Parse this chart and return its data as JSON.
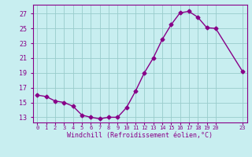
{
  "x": [
    0,
    1,
    2,
    3,
    4,
    5,
    6,
    7,
    8,
    9,
    10,
    11,
    12,
    13,
    14,
    15,
    16,
    17,
    18,
    19,
    20,
    23
  ],
  "y": [
    16.0,
    15.8,
    15.2,
    15.0,
    14.5,
    13.3,
    13.0,
    12.8,
    13.0,
    13.0,
    14.3,
    16.5,
    19.0,
    21.0,
    23.5,
    25.5,
    27.1,
    27.3,
    26.5,
    25.1,
    25.0,
    19.2
  ],
  "line_color": "#880088",
  "marker": "D",
  "marker_size": 2.5,
  "bg_color": "#c8eef0",
  "grid_color": "#99cccc",
  "xlabel": "Windchill (Refroidissement éolien,°C)",
  "xlabel_color": "#880088",
  "tick_color": "#880088",
  "ylabel_ticks": [
    13,
    15,
    17,
    19,
    21,
    23,
    25,
    27
  ],
  "xlim": [
    -0.5,
    23.5
  ],
  "ylim": [
    12.3,
    28.2
  ]
}
